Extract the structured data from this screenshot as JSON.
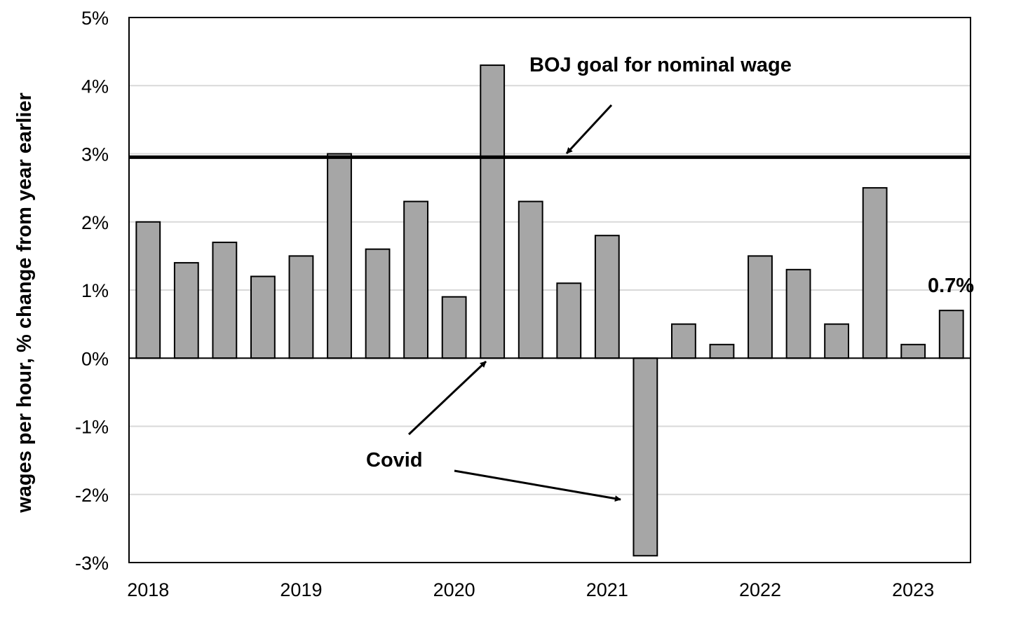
{
  "chart_data": {
    "type": "bar",
    "ylabel": "wages per hour, % change from year earlier",
    "ylim": [
      -3,
      5
    ],
    "y_ticks": [
      {
        "value": 5,
        "label": "5%"
      },
      {
        "value": 4,
        "label": "4%"
      },
      {
        "value": 3,
        "label": "3%"
      },
      {
        "value": 2,
        "label": "2%"
      },
      {
        "value": 1,
        "label": "1%"
      },
      {
        "value": 0,
        "label": "0%"
      },
      {
        "value": -1,
        "label": "-1%"
      },
      {
        "value": -2,
        "label": "-2%"
      },
      {
        "value": -3,
        "label": "-3%"
      }
    ],
    "x_ticks": [
      "2018",
      "2019",
      "2020",
      "2021",
      "2022",
      "2023"
    ],
    "values": [
      2.0,
      1.4,
      1.7,
      1.2,
      1.5,
      3.0,
      1.6,
      2.3,
      0.9,
      4.3,
      2.3,
      1.1,
      1.8,
      -2.9,
      0.5,
      0.2,
      1.5,
      1.3,
      0.5,
      2.5,
      0.2,
      0.7
    ],
    "bar_color": "#a6a6a6",
    "grid": true,
    "reference_line": {
      "value": 2.95,
      "color": "#000000"
    },
    "annotations": {
      "goal": "BOJ goal for nominal wage",
      "covid": "Covid",
      "last_value": "0.7%"
    }
  }
}
